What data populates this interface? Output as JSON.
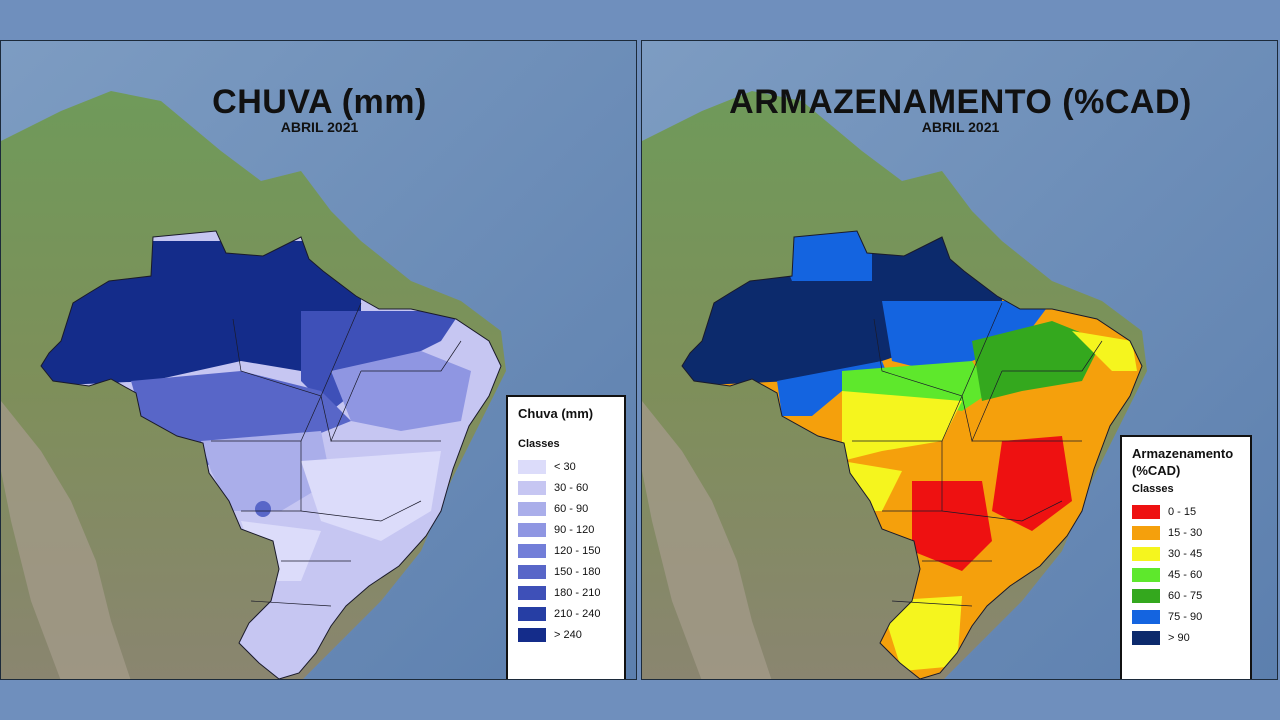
{
  "left_map": {
    "title": "CHUVA (mm)",
    "subtitle": "ABRIL 2021",
    "legend": {
      "title": "Chuva (mm)",
      "subtitle": "Classes",
      "classes": [
        {
          "label": "< 30",
          "color": "#dcdcfa"
        },
        {
          "label": "30 - 60",
          "color": "#c6c6f2"
        },
        {
          "label": "60 - 90",
          "color": "#aaaeea"
        },
        {
          "label": "90 - 120",
          "color": "#8f96e2"
        },
        {
          "label": "120 - 150",
          "color": "#727ed8"
        },
        {
          "label": "150 - 180",
          "color": "#5866c8"
        },
        {
          "label": "180 - 210",
          "color": "#3e50b8"
        },
        {
          "label": "210 - 240",
          "color": "#263ea4"
        },
        {
          "label": "> 240",
          "color": "#142c8a"
        }
      ]
    }
  },
  "right_map": {
    "title": "ARMAZENAMENTO (%CAD)",
    "subtitle": "ABRIL 2021",
    "legend": {
      "title": "Armazenamento (%CAD)",
      "subtitle": "Classes",
      "classes": [
        {
          "label": "0 - 15",
          "color": "#ee1111"
        },
        {
          "label": "15 - 30",
          "color": "#f5a00c"
        },
        {
          "label": "30 - 45",
          "color": "#f5f51e"
        },
        {
          "label": "45 - 60",
          "color": "#5ee82c"
        },
        {
          "label": "60 - 75",
          "color": "#34a81e"
        },
        {
          "label": "75 - 90",
          "color": "#1464e0"
        },
        {
          "label": "> 90",
          "color": "#0c2a6c"
        }
      ]
    }
  }
}
